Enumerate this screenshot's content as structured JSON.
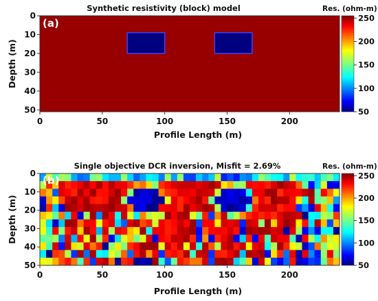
{
  "chart_data": [
    {
      "type": "heatmap",
      "panel_label": "(a)",
      "title": "Synthetic resistivity (block) model",
      "xlabel": "Profile Length (m)",
      "ylabel": "Depth (m)",
      "xlim": [
        0,
        240
      ],
      "ylim": [
        0,
        51
      ],
      "y_inverted": true,
      "x_ticks": [
        "0",
        "50",
        "100",
        "150",
        "200"
      ],
      "y_ticks": [
        "0",
        "10",
        "20",
        "30",
        "40",
        "50"
      ],
      "colorbar": {
        "title": "Res. (ohm-m)",
        "range": [
          50,
          255
        ],
        "ticks": [
          "250",
          "200",
          "150",
          "100",
          "50"
        ],
        "colormap": "jet"
      },
      "background_value": 250,
      "blocks": [
        {
          "x0": 70,
          "x1": 100,
          "y0": 9,
          "y1": 20,
          "value": 50
        },
        {
          "x0": 140,
          "x1": 170,
          "y0": 9,
          "y1": 20,
          "value": 50
        }
      ]
    },
    {
      "type": "heatmap",
      "panel_label": "(b)",
      "title": "Single objective DCR inversion, Misfit = 2.69%",
      "xlabel": "Profile Length (m)",
      "ylabel": "Depth (m)",
      "xlim": [
        0,
        240
      ],
      "ylim": [
        0,
        50
      ],
      "y_inverted": true,
      "x_ticks": [
        "0",
        "50",
        "100",
        "150",
        "200"
      ],
      "y_ticks": [
        "0",
        "10",
        "20",
        "30",
        "40",
        "50"
      ],
      "colorbar": {
        "title": "Res. (ohm-m)",
        "range": [
          50,
          255
        ],
        "ticks": [
          "250",
          "200",
          "150",
          "100",
          "50"
        ],
        "colormap": "jet"
      },
      "background_value": 235,
      "anomalies": [
        {
          "x_center": 85,
          "y_center": 15,
          "x_halfwidth": 13,
          "y_halfwidth": 8,
          "value": 50
        },
        {
          "x_center": 155,
          "y_center": 15,
          "x_halfwidth": 13,
          "y_halfwidth": 8,
          "value": 50
        }
      ]
    }
  ]
}
